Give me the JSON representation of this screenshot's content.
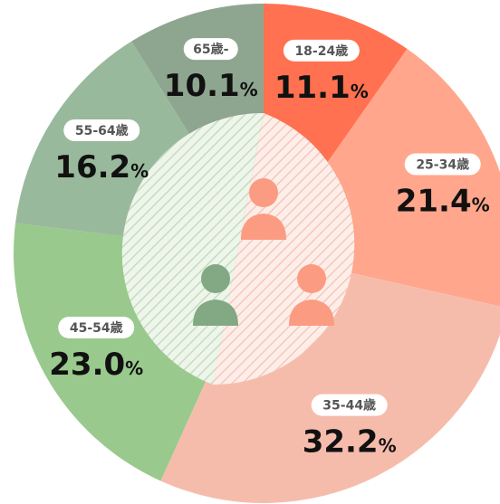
{
  "chart_data": {
    "type": "donut",
    "categories": [
      "18-24歳",
      "25-34歳",
      "35-44歳",
      "45-54歳",
      "55-64歳",
      "65歳-"
    ],
    "values": [
      11.1,
      21.4,
      32.2,
      23.0,
      16.2,
      10.1
    ],
    "unit": "%",
    "colors": [
      "#ff7150",
      "#ffa68c",
      "#f6bcab",
      "#99c98d",
      "#99b99c",
      "#8ea68f"
    ]
  }
}
